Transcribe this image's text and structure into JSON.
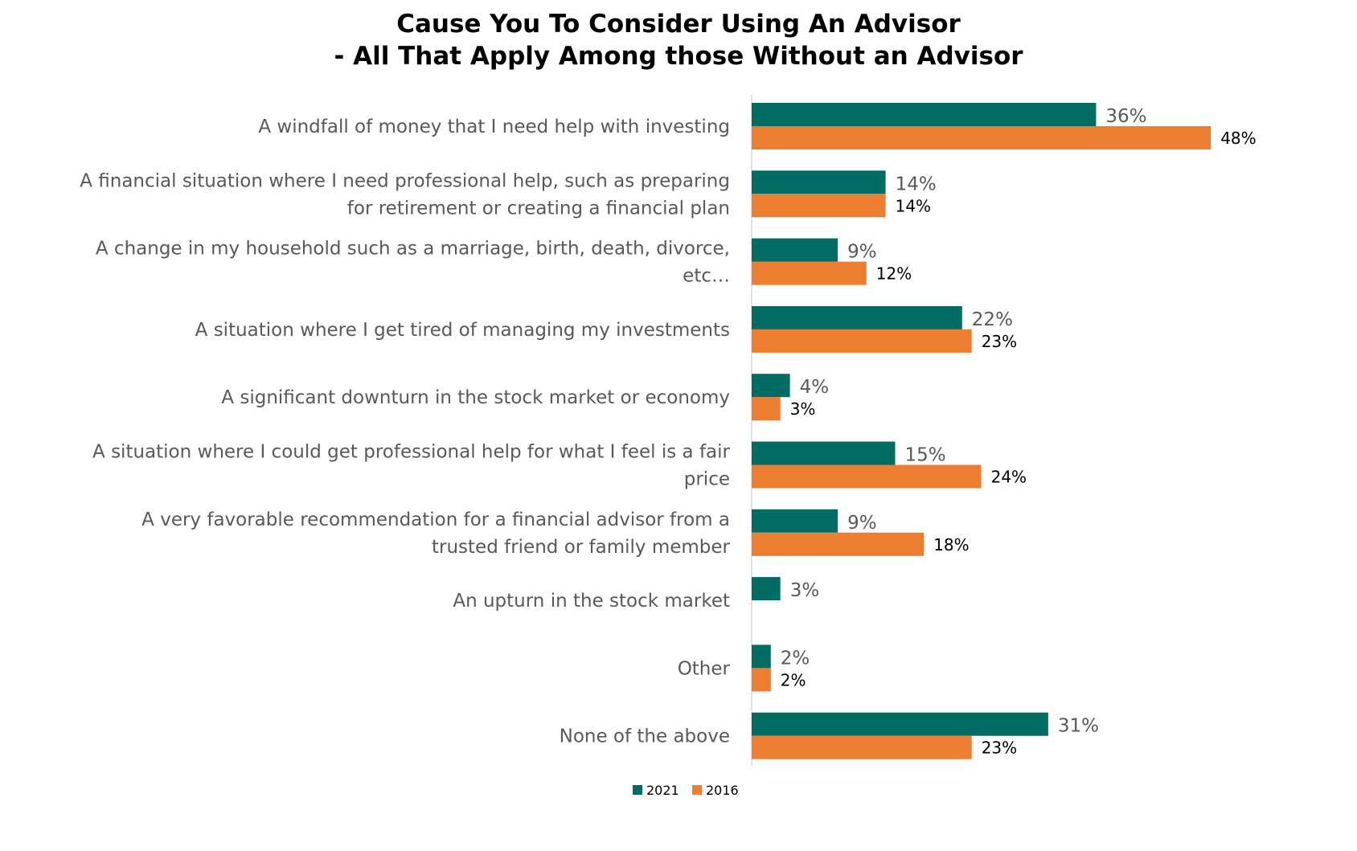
{
  "chart_data": {
    "type": "bar",
    "orientation": "horizontal",
    "title": "Cause You To Consider Using An Advisor\n- All That Apply Among those Without an Advisor",
    "categories": [
      "A windfall of money that I need help with investing",
      "A financial situation where I need professional help, such as preparing for retirement or creating a financial plan",
      "A change in my household such as a marriage, birth, death, divorce, etc…",
      "A situation where I get tired of managing my investments",
      "A significant downturn in the stock market or economy",
      "A situation where I could get professional help for what I feel is a fair price",
      "A very favorable recommendation for a financial advisor from a trusted friend or family member",
      "An upturn in the stock market",
      "Other",
      "None of the above"
    ],
    "series": [
      {
        "name": "2021",
        "color": "#006D64",
        "values": [
          36,
          14,
          9,
          22,
          4,
          15,
          9,
          3,
          2,
          31
        ],
        "labels": [
          "36%",
          "14%",
          "9%",
          "22%",
          "4%",
          "15%",
          "9%",
          "3%",
          "2%",
          "31%"
        ]
      },
      {
        "name": "2016",
        "color": "#ED7D31",
        "values": [
          48,
          14,
          12,
          23,
          3,
          24,
          18,
          null,
          2,
          23
        ],
        "labels": [
          "48%",
          "14%",
          "12%",
          "23%",
          "3%",
          "24%",
          "18%",
          "",
          "2%",
          "23%"
        ]
      }
    ],
    "legend_position": "bottom",
    "grid": false
  }
}
